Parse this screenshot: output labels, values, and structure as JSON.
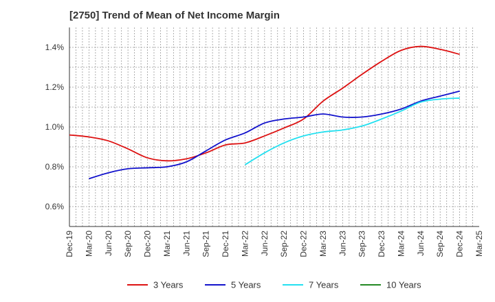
{
  "chart_data": {
    "type": "line",
    "title": "[2750]  Trend of Mean of Net Income Margin",
    "xlabel": "",
    "ylabel": "",
    "x_ticks": [
      "Dec-19",
      "Mar-20",
      "Jun-20",
      "Sep-20",
      "Dec-20",
      "Mar-21",
      "Jun-21",
      "Sep-21",
      "Dec-21",
      "Mar-22",
      "Jun-22",
      "Sep-22",
      "Dec-22",
      "Mar-23",
      "Jun-23",
      "Sep-23",
      "Dec-23",
      "Mar-24",
      "Jun-24",
      "Sep-24",
      "Dec-24",
      "Mar-25"
    ],
    "y_ticks": [
      "0.6%",
      "0.8%",
      "1.0%",
      "1.2%",
      "1.4%"
    ],
    "y_tick_values": [
      0.6,
      0.8,
      1.0,
      1.2,
      1.4
    ],
    "ylim": [
      0.5,
      1.5
    ],
    "grid": true,
    "legend_position": "bottom",
    "series": [
      {
        "name": "3 Years",
        "color": "#dd1111",
        "x": [
          "Dec-19",
          "Mar-20",
          "Jun-20",
          "Sep-20",
          "Dec-20",
          "Mar-21",
          "Jun-21",
          "Sep-21",
          "Dec-21",
          "Mar-22",
          "Jun-22",
          "Sep-22",
          "Dec-22",
          "Mar-23",
          "Jun-23",
          "Sep-23",
          "Dec-23",
          "Mar-24",
          "Jun-24",
          "Sep-24",
          "Dec-24"
        ],
        "values": [
          0.96,
          0.95,
          0.93,
          0.89,
          0.845,
          0.83,
          0.84,
          0.87,
          0.91,
          0.92,
          0.955,
          0.995,
          1.04,
          1.13,
          1.195,
          1.265,
          1.33,
          1.385,
          1.405,
          1.39,
          1.365
        ]
      },
      {
        "name": "5 Years",
        "color": "#1111cc",
        "x": [
          "Mar-20",
          "Jun-20",
          "Sep-20",
          "Dec-20",
          "Mar-21",
          "Jun-21",
          "Sep-21",
          "Dec-21",
          "Mar-22",
          "Jun-22",
          "Sep-22",
          "Dec-22",
          "Mar-23",
          "Jun-23",
          "Sep-23",
          "Dec-23",
          "Mar-24",
          "Jun-24",
          "Sep-24",
          "Dec-24"
        ],
        "values": [
          0.74,
          0.77,
          0.79,
          0.795,
          0.8,
          0.825,
          0.88,
          0.935,
          0.97,
          1.02,
          1.04,
          1.05,
          1.065,
          1.05,
          1.05,
          1.065,
          1.09,
          1.13,
          1.155,
          1.18
        ]
      },
      {
        "name": "7 Years",
        "color": "#22e0f0",
        "x": [
          "Mar-22",
          "Jun-22",
          "Sep-22",
          "Dec-22",
          "Mar-23",
          "Jun-23",
          "Sep-23",
          "Dec-23",
          "Mar-24",
          "Jun-24",
          "Sep-24",
          "Dec-24"
        ],
        "values": [
          0.81,
          0.87,
          0.92,
          0.955,
          0.975,
          0.985,
          1.005,
          1.04,
          1.08,
          1.125,
          1.14,
          1.145
        ]
      },
      {
        "name": "10 Years",
        "color": "#228822",
        "x": [],
        "values": []
      }
    ]
  }
}
